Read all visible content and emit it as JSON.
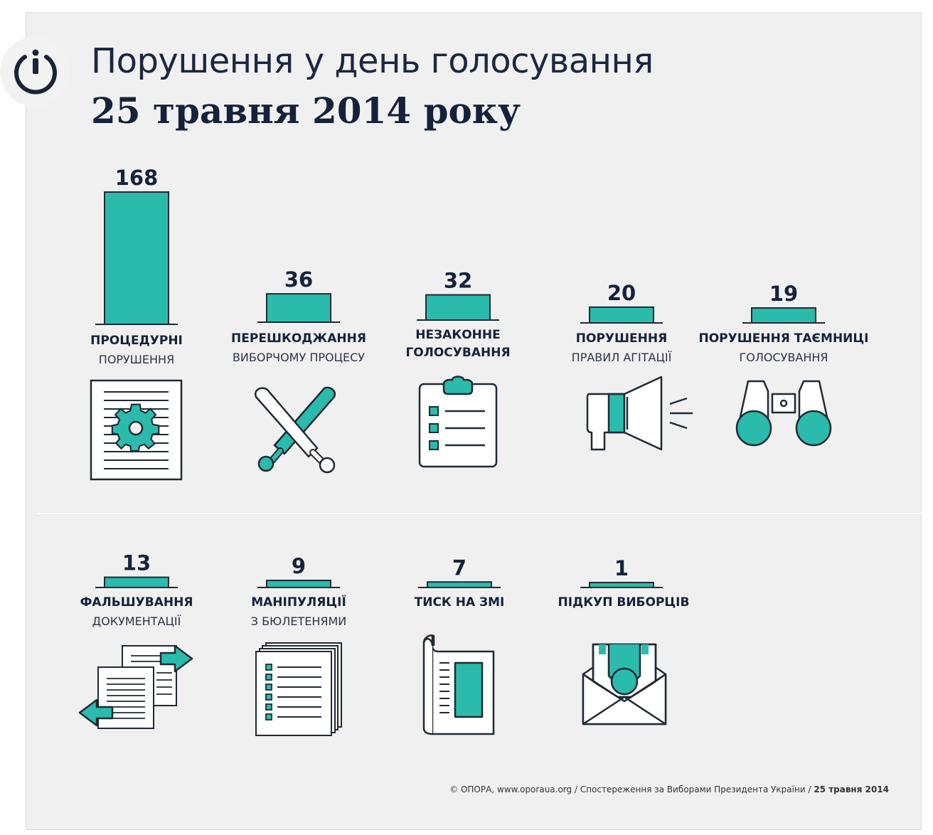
{
  "header": {
    "title_line1": "Порушення у день голосування",
    "title_line2": "25 травня 2014 року"
  },
  "colors": {
    "bar": "#2bbbad",
    "outline": "#1f2a33",
    "text": "#15223b",
    "panel": "#f0f0f0"
  },
  "chart_data": {
    "type": "bar",
    "categories": [
      "ПРОЦЕДУРНІ ПОРУШЕННЯ",
      "ПЕРЕШКОДЖАННЯ ВИБОРЧОМУ ПРОЦЕСУ",
      "НЕЗАКОННЕ ГОЛОСУВАННЯ",
      "ПОРУШЕННЯ ПРАВИЛ АГІТАЦІЇ",
      "ПОРУШЕННЯ ТАЄМНИЦІ ГОЛОСУВАННЯ",
      "ФАЛЬШУВАННЯ ДОКУМЕНТАЦІЇ",
      "МАНІПУЛЯЦІЇ З БЮЛЕТЕНЯМИ",
      "ТИСК НА ЗМІ",
      "ПІДКУП ВИБОРЦІВ"
    ],
    "values": [
      168,
      36,
      32,
      20,
      19,
      13,
      9,
      7,
      1
    ],
    "value_labels": [
      "168",
      "36",
      "32",
      "20",
      "19",
      "13",
      "9",
      "7",
      "1"
    ]
  },
  "categories": [
    {
      "line1": "ПРОЦЕДУРНІ",
      "line2": "ПОРУШЕННЯ",
      "icon": "document-gear-icon"
    },
    {
      "line1": "ПЕРЕШКОДЖАННЯ",
      "line2": "ВИБОРЧОМУ ПРОЦЕСУ",
      "icon": "crossed-bats-icon"
    },
    {
      "line1": "НЕЗАКОННЕ",
      "line2": "ГОЛОСУВАННЯ",
      "icon": "clipboard-icon"
    },
    {
      "line1": "ПОРУШЕННЯ",
      "line2": "ПРАВИЛ АГІТАЦІЇ",
      "icon": "megaphone-icon"
    },
    {
      "line1": "ПОРУШЕННЯ ТАЄМНИЦІ",
      "line2": "ГОЛОСУВАННЯ",
      "icon": "binoculars-icon"
    },
    {
      "line1": "ФАЛЬШУВАННЯ",
      "line2": "ДОКУМЕНТАЦІЇ",
      "icon": "documents-swap-icon"
    },
    {
      "line1": "МАНІПУЛЯЦІЇ",
      "line2": "З БЮЛЕТЕНЯМИ",
      "icon": "ballots-stack-icon"
    },
    {
      "line1": "ТИСК НА ЗМІ",
      "line2": "",
      "icon": "newspaper-icon"
    },
    {
      "line1": "ПІДКУП ВИБОРЦІВ",
      "line2": "",
      "icon": "money-envelope-icon"
    }
  ],
  "footer": {
    "source": "© ОПОРА, www.oporaua.org / Спостереження за Виборами Президента України /",
    "date": "25 травня 2014"
  }
}
